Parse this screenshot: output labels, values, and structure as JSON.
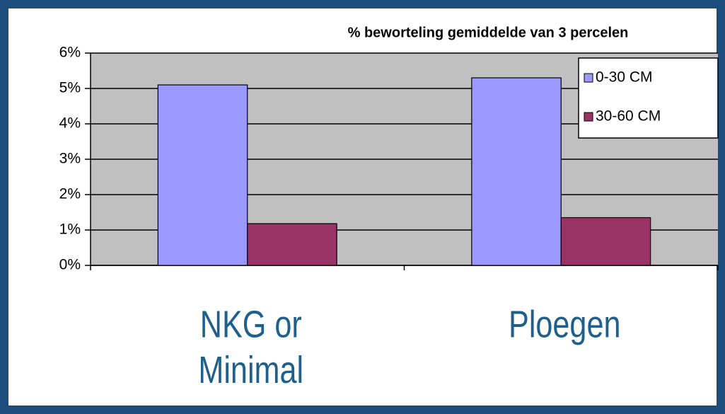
{
  "chart_data": {
    "type": "bar",
    "title": "% beworteling gemiddelde van 3 percelen",
    "categories": [
      "NKG or\nMinimal",
      "Ploegen"
    ],
    "series": [
      {
        "name": "0-30 CM",
        "color": "#9999ff",
        "values": [
          5.1,
          5.3
        ]
      },
      {
        "name": "30-60 CM",
        "color": "#993366",
        "values": [
          1.18,
          1.35
        ]
      }
    ],
    "ylim": [
      0,
      6
    ],
    "yticks": [
      {
        "value": 0,
        "label": "0%"
      },
      {
        "value": 1,
        "label": "1%"
      },
      {
        "value": 2,
        "label": "2%"
      },
      {
        "value": 3,
        "label": "3%"
      },
      {
        "value": 4,
        "label": "4%"
      },
      {
        "value": 5,
        "label": "5%"
      },
      {
        "value": 6,
        "label": "6%"
      }
    ],
    "grid": true,
    "legend": "top-right"
  }
}
